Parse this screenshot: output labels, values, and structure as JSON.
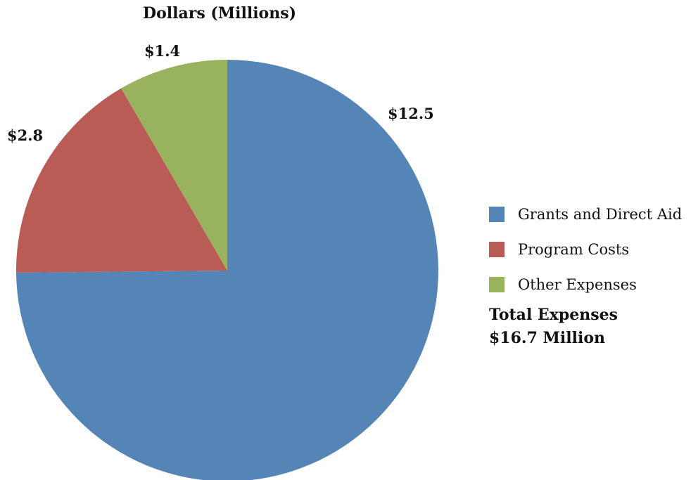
{
  "chart_data": {
    "type": "pie",
    "title": "Dollars (Millions)",
    "categories": [
      "Grants and Direct Aid",
      "Program Costs",
      "Other Expenses"
    ],
    "values": [
      12.5,
      2.8,
      1.4
    ],
    "value_labels": [
      "$12.5",
      "$2.8",
      "$1.4"
    ],
    "colors": [
      "#5584b6",
      "#b95c55",
      "#99b25d"
    ],
    "start_angle": "top",
    "direction": "clockwise",
    "legend_position": "right",
    "total_line1": "Total Expenses",
    "total_line2": "$16.7 Million"
  }
}
